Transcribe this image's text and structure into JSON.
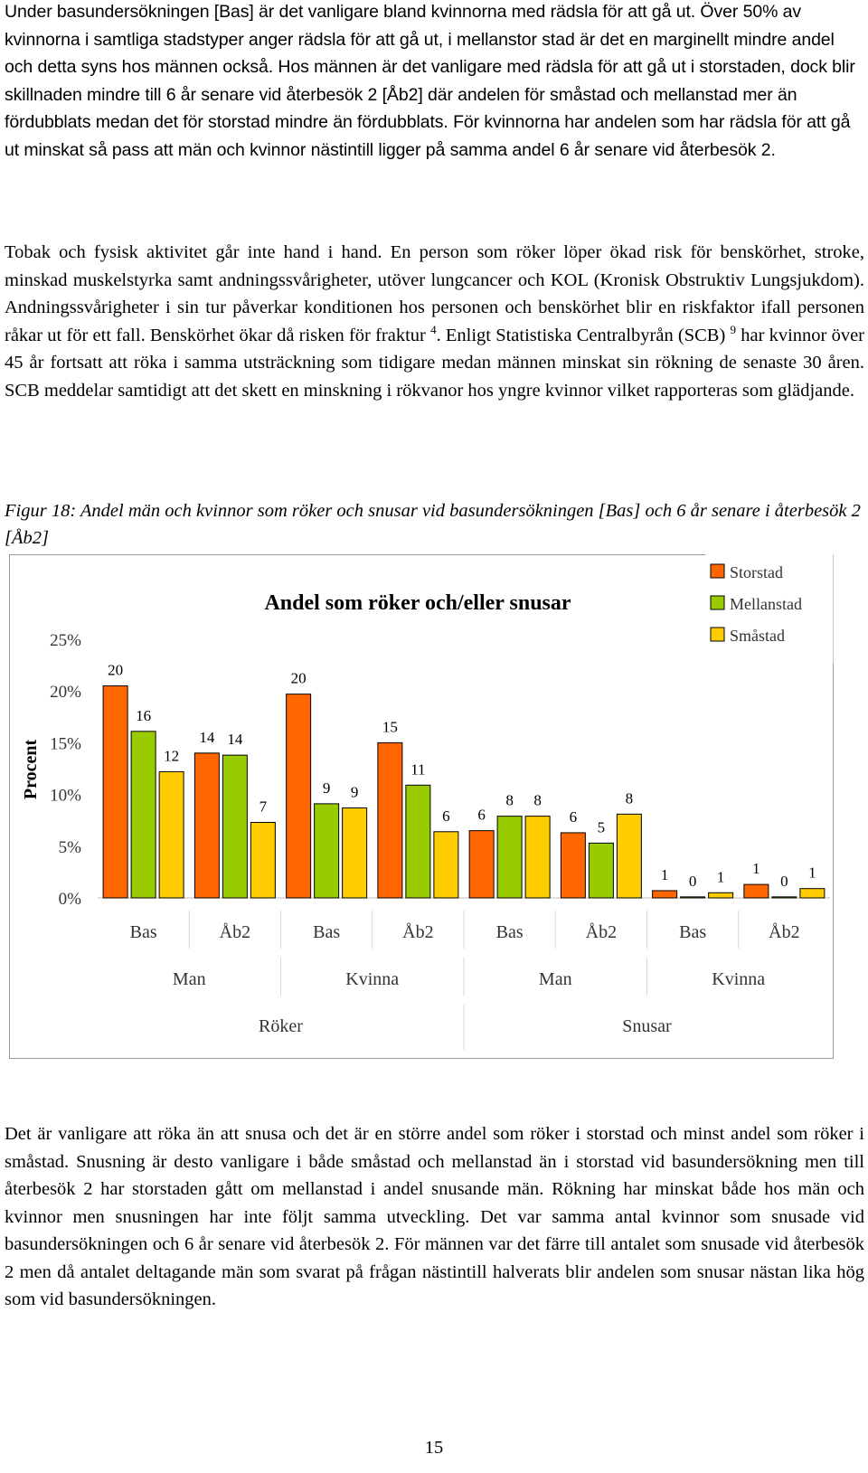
{
  "page": {
    "para1": "Under basundersökningen [Bas] är det vanligare bland kvinnorna med rädsla för att gå ut. Över 50% av kvinnorna i samtliga stadstyper anger rädsla för att gå ut, i mellanstor stad är det en marginellt mindre andel och detta syns hos männen också. Hos männen är det vanligare med rädsla för att gå ut i storstaden, dock blir skillnaden mindre till 6 år senare vid återbesök 2 [Åb2] där andelen för småstad och mellanstad mer än fördubblats medan det för storstad mindre än fördubblats. För kvinnorna har andelen som har rädsla för att gå ut minskat så pass att män och kvinnor nästintill ligger på samma andel 6 år senare vid återbesök 2.",
    "para2_a": "Tobak och fysisk aktivitet går inte hand i hand. En person som röker löper ökad risk för benskörhet, stroke, minskad muskelstyrka samt andningssvårigheter, utöver lungcancer och KOL (Kronisk Obstruktiv Lungsjukdom). Andningssvårigheter i sin tur påverkar konditionen hos personen och benskörhet blir en riskfaktor ifall personen råkar ut för ett fall. Benskörhet ökar då risken för fraktur ",
    "para2_ref1": "4",
    "para2_b": ". Enligt Statistiska Centralbyrån (SCB) ",
    "para2_ref2": "9",
    "para2_c": " har kvinnor över 45 år fortsatt att röka i samma utsträckning som tidigare medan männen minskat sin rökning de senaste 30 åren. SCB meddelar samtidigt att det skett en minskning i rökvanor hos yngre kvinnor vilket rapporteras som glädjande.",
    "caption": "Figur 18: Andel män och kvinnor som röker och snusar vid basundersökningen [Bas] och 6 år senare i återbesök 2 [Åb2]",
    "para3": "Det är vanligare att röka än att snusa och det är en större andel som röker i storstad och minst andel som röker i småstad. Snusning är desto vanligare i både småstad och mellanstad än i storstad vid basundersökning men till återbesök 2 har storstaden gått om mellanstad i andel snusande män. Rökning har minskat både hos män och kvinnor men snusningen har inte följt samma utveckling. Det var samma antal kvinnor som snusade vid basundersökningen och 6 år senare vid återbesök 2. För männen var det färre till antalet som snusade vid återbesök 2 men då antalet deltagande män som svarat på frågan nästintill halverats blir andelen som snusar nästan lika hög som vid basundersökningen.",
    "page_number": "15"
  },
  "chart_data": {
    "type": "bar",
    "title": "Andel som röker och/eller snusar",
    "ylabel": "Procent",
    "ylim": [
      0,
      25
    ],
    "yticks": [
      "0%",
      "5%",
      "10%",
      "15%",
      "20%",
      "25%"
    ],
    "categories": [
      "Bas",
      "Åb2",
      "Bas",
      "Åb2",
      "Bas",
      "Åb2",
      "Bas",
      "Åb2"
    ],
    "groups_level2": [
      "Man",
      "Kvinna",
      "Man",
      "Kvinna"
    ],
    "groups_level3": [
      "Röker",
      "Snusar"
    ],
    "legend_position": "top-right",
    "series": [
      {
        "name": "Storstad",
        "color": "#ff6600",
        "values": [
          20.5,
          14,
          19.7,
          15,
          6.5,
          6.3,
          0.7,
          1.3
        ],
        "labels": [
          "20",
          "14",
          "20",
          "15",
          "6",
          "6",
          "1",
          "1"
        ]
      },
      {
        "name": "Mellanstad",
        "color": "#99cc00",
        "values": [
          16.1,
          13.8,
          9.1,
          10.9,
          7.9,
          5.3,
          0.1,
          0.1
        ],
        "labels": [
          "16",
          "14",
          "9",
          "11",
          "8",
          "5",
          "0",
          "0"
        ]
      },
      {
        "name": "Småstad",
        "color": "#ffcc00",
        "values": [
          12.2,
          7.3,
          8.7,
          6.4,
          7.9,
          8.1,
          0.5,
          0.9
        ],
        "labels": [
          "12",
          "7",
          "9",
          "6",
          "8",
          "8",
          "1",
          "1"
        ]
      }
    ]
  }
}
